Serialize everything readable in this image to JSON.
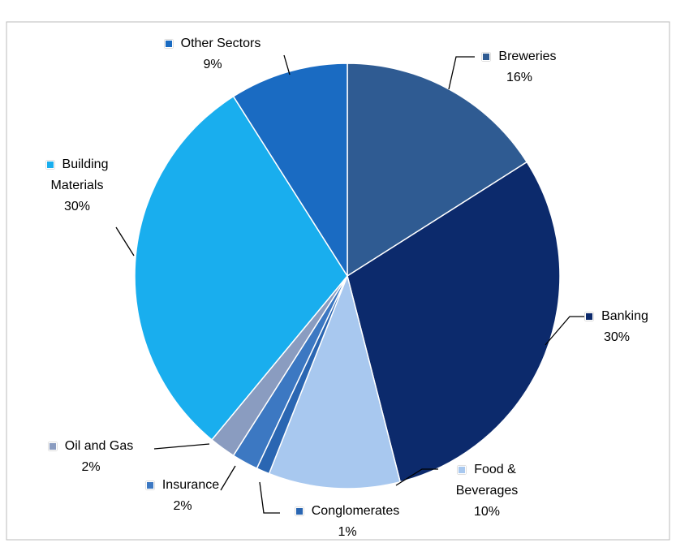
{
  "chart_data": {
    "type": "pie",
    "categories": [
      "Breweries",
      "Banking",
      "Food & Beverages",
      "Conglomerates",
      "Insurance",
      "Oil and Gas",
      "Building Materials",
      "Other Sectors"
    ],
    "values": [
      16,
      30,
      10,
      1,
      2,
      2,
      30,
      9
    ],
    "value_labels": [
      "16%",
      "30%",
      "10%",
      "1%",
      "2%",
      "2%",
      "30%",
      "9%"
    ],
    "colors": [
      "#2f5b92",
      "#0c2a6c",
      "#a8c8ef",
      "#2a66b2",
      "#3c78c2",
      "#8a9cc0",
      "#19aeee",
      "#1a6bc2"
    ]
  }
}
